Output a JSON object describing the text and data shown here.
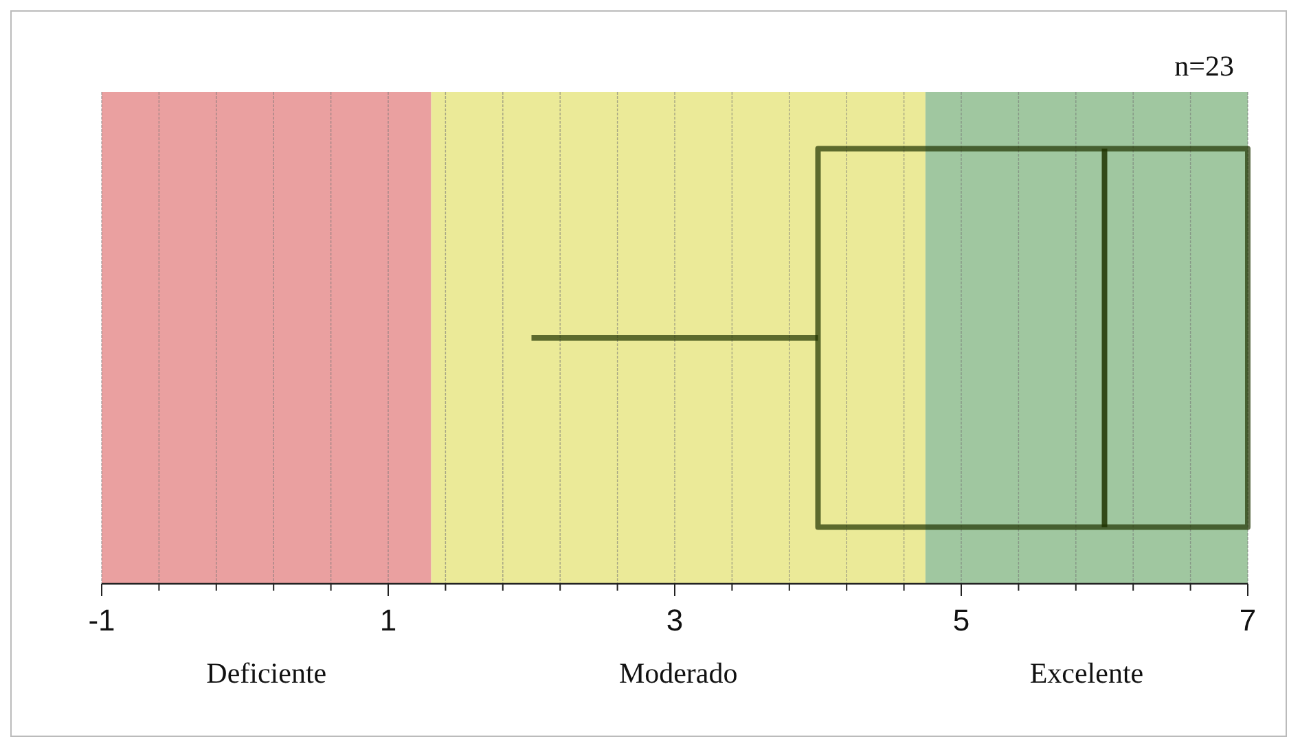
{
  "chart_data": {
    "type": "box",
    "orientation": "horizontal",
    "categories": [
      null
    ],
    "boxes": [
      {
        "low": 2,
        "q1": 4,
        "median": 6,
        "q3": 7,
        "high": 7
      }
    ],
    "color": "#1f3300",
    "xlim": [
      -1,
      7
    ],
    "xticks": [
      -1,
      {
        "value": -0.6,
        "label": null
      },
      {
        "value": -0.2,
        "label": null
      },
      {
        "value": 0.2,
        "label": null
      },
      {
        "value": 0.6,
        "label": null
      },
      1,
      {
        "value": 1.4,
        "label": null
      },
      {
        "value": 1.8,
        "label": null
      },
      {
        "value": 2.2,
        "label": null
      },
      {
        "value": 2.6,
        "label": null
      },
      3,
      {
        "value": 3.4,
        "label": null
      },
      {
        "value": 3.8,
        "label": null
      },
      {
        "value": 4.2,
        "label": null
      },
      {
        "value": 4.6,
        "label": null
      },
      5,
      {
        "value": 5.4,
        "label": null
      },
      {
        "value": 5.8,
        "label": null
      },
      {
        "value": 6.2,
        "label": null
      },
      {
        "value": 6.6,
        "label": null
      },
      7
    ],
    "grid": "x",
    "bands": [
      {
        "axis": "x",
        "from": -1,
        "to": 1.3,
        "label": "Deficiente",
        "color": "#eaa0a0"
      },
      {
        "axis": "x",
        "from": 1.3,
        "to": 4.75,
        "label": "Moderado",
        "color": "#ebea98"
      },
      {
        "axis": "x",
        "from": 4.75,
        "to": 7,
        "label": "Excelente",
        "color": "#a0c7a0"
      }
    ],
    "annotations": [
      "n=23"
    ]
  }
}
